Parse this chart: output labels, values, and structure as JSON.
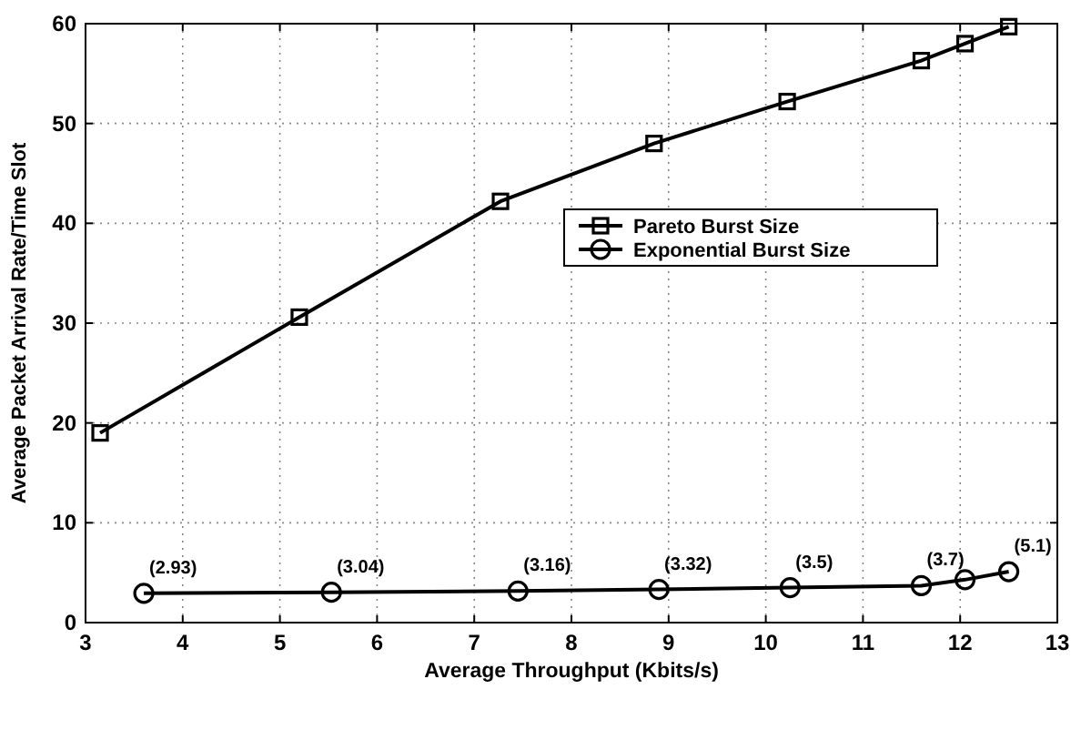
{
  "chart_data": {
    "type": "line",
    "xlabel": "Average Throughput (Kbits/s)",
    "ylabel": "Average Packet Arrival Rate/Time Slot",
    "xlim": [
      3,
      13
    ],
    "xticks": [
      3,
      4,
      5,
      6,
      7,
      8,
      9,
      10,
      11,
      12,
      13
    ],
    "ylim": [
      0,
      60
    ],
    "yticks": [
      0,
      10,
      20,
      30,
      40,
      50,
      60
    ],
    "grid": true,
    "legend": "right",
    "line_style": "solid",
    "series": [
      {
        "name": "Pareto Burst Size",
        "color": "#000000",
        "marker": "square",
        "x": [
          3.15,
          5.2,
          7.27,
          8.85,
          10.22,
          11.6,
          12.05,
          12.5
        ],
        "values": [
          19,
          30.6,
          42.2,
          48,
          52.2,
          56.3,
          58,
          59.7
        ]
      },
      {
        "name": "Exponential Burst Size",
        "color": "#000000",
        "marker": "circle",
        "x": [
          3.6,
          5.53,
          7.45,
          8.9,
          10.25,
          11.6,
          12.05,
          12.5
        ],
        "values": [
          2.93,
          3.04,
          3.16,
          3.32,
          3.5,
          3.7,
          4.3,
          5.1
        ],
        "value_labels": [
          "(2.93)",
          "(3.04)",
          "(3.16)",
          "(3.32)",
          "(3.5)",
          "(3.7)",
          null,
          "(5.1)"
        ]
      }
    ]
  }
}
